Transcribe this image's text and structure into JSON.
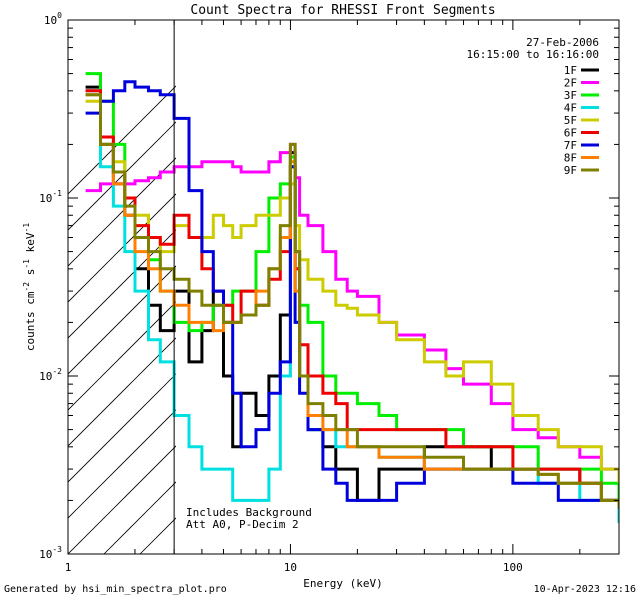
{
  "chart_data": {
    "type": "line",
    "title": "Count Spectra for RHESSI Front Segments",
    "xlabel": "Energy (keV)",
    "ylabel_parts": [
      "counts cm",
      "-2",
      " s",
      "-1",
      " keV",
      "-1"
    ],
    "x_scale": "log",
    "y_scale": "log",
    "xlim": [
      1,
      300
    ],
    "ylim": [
      0.001,
      1
    ],
    "x_ticks": [
      {
        "value": 1,
        "label": "1"
      },
      {
        "value": 10,
        "label": "10"
      },
      {
        "value": 100,
        "label": "100"
      }
    ],
    "y_ticks": [
      {
        "value": 1,
        "mant": "10",
        "exp": "0"
      },
      {
        "value": 0.1,
        "mant": "10",
        "exp": "-1"
      },
      {
        "value": 0.01,
        "mant": "10",
        "exp": "-2"
      },
      {
        "value": 0.001,
        "mant": "10",
        "exp": "-3"
      }
    ],
    "attenuator_region_xmax": 3,
    "legend_date": "27-Feb-2006",
    "legend_time": "16:15:00 to 16:16:00",
    "annotations": [
      "Includes Background",
      "Att A0, P-Decim 2"
    ],
    "series": [
      {
        "name": "1F",
        "color": "#000000",
        "x": [
          1.2,
          1.4,
          1.6,
          1.8,
          2.0,
          2.3,
          2.6,
          3.0,
          3.5,
          4.0,
          4.5,
          5.0,
          5.5,
          6.0,
          7.0,
          8.0,
          9.0,
          10.0,
          10.5,
          11.0,
          12.0,
          14.0,
          16.0,
          18.0,
          20.0,
          25.0,
          30.0,
          40.0,
          50.0,
          60.0,
          80.0,
          100.0,
          130.0,
          160.0,
          200.0,
          250.0,
          300.0
        ],
        "y": [
          0.42,
          0.2,
          0.12,
          0.08,
          0.04,
          0.025,
          0.018,
          0.03,
          0.012,
          0.018,
          0.03,
          0.01,
          0.004,
          0.008,
          0.006,
          0.01,
          0.022,
          0.18,
          0.05,
          0.01,
          0.005,
          0.004,
          0.003,
          0.003,
          0.002,
          0.003,
          0.003,
          0.004,
          0.004,
          0.004,
          0.003,
          0.003,
          0.003,
          0.003,
          0.0025,
          0.002,
          0.0015
        ]
      },
      {
        "name": "2F",
        "color": "#ff00ff",
        "x": [
          1.2,
          1.4,
          1.6,
          1.8,
          2.0,
          2.3,
          2.6,
          3.0,
          3.5,
          4.0,
          4.5,
          5.0,
          5.5,
          6.0,
          7.0,
          8.0,
          9.0,
          10.0,
          10.5,
          11.0,
          12.0,
          14.0,
          16.0,
          18.0,
          20.0,
          25.0,
          30.0,
          40.0,
          50.0,
          60.0,
          80.0,
          100.0,
          130.0,
          160.0,
          200.0,
          250.0,
          300.0
        ],
        "y": [
          0.11,
          0.12,
          0.12,
          0.12,
          0.125,
          0.13,
          0.14,
          0.15,
          0.15,
          0.16,
          0.16,
          0.16,
          0.15,
          0.14,
          0.14,
          0.16,
          0.18,
          0.2,
          0.13,
          0.08,
          0.07,
          0.05,
          0.035,
          0.03,
          0.028,
          0.02,
          0.017,
          0.014,
          0.011,
          0.009,
          0.007,
          0.005,
          0.0045,
          0.004,
          0.0035,
          0.003,
          0.0025
        ]
      },
      {
        "name": "3F",
        "color": "#00ee00",
        "x": [
          1.2,
          1.4,
          1.6,
          1.8,
          2.0,
          2.3,
          2.6,
          3.0,
          3.5,
          4.0,
          4.5,
          5.0,
          5.5,
          6.0,
          7.0,
          8.0,
          9.0,
          10.0,
          10.5,
          11.0,
          12.0,
          14.0,
          16.0,
          18.0,
          20.0,
          25.0,
          30.0,
          40.0,
          50.0,
          60.0,
          80.0,
          100.0,
          130.0,
          160.0,
          200.0,
          250.0,
          300.0
        ],
        "y": [
          0.5,
          0.35,
          0.2,
          0.1,
          0.06,
          0.045,
          0.03,
          0.02,
          0.018,
          0.02,
          0.025,
          0.025,
          0.03,
          0.03,
          0.05,
          0.1,
          0.12,
          0.17,
          0.04,
          0.025,
          0.02,
          0.01,
          0.008,
          0.008,
          0.007,
          0.006,
          0.005,
          0.005,
          0.005,
          0.004,
          0.004,
          0.004,
          0.003,
          0.003,
          0.003,
          0.0025,
          0.002
        ]
      },
      {
        "name": "4F",
        "color": "#00e0e0",
        "x": [
          1.2,
          1.4,
          1.6,
          1.8,
          2.0,
          2.3,
          2.6,
          3.0,
          3.5,
          4.0,
          4.5,
          5.0,
          5.5,
          6.0,
          7.0,
          8.0,
          9.0,
          10.0,
          10.5,
          11.0,
          12.0,
          14.0,
          16.0,
          18.0,
          20.0,
          25.0,
          30.0,
          40.0,
          50.0,
          60.0,
          80.0,
          100.0,
          130.0,
          160.0,
          200.0,
          250.0,
          300.0
        ],
        "y": [
          0.4,
          0.15,
          0.09,
          0.05,
          0.03,
          0.016,
          0.012,
          0.006,
          0.004,
          0.003,
          0.003,
          0.003,
          0.002,
          0.002,
          0.002,
          0.003,
          0.01,
          0.12,
          0.03,
          0.01,
          0.005,
          0.005,
          0.004,
          0.004,
          0.004,
          0.0035,
          0.0035,
          0.003,
          0.003,
          0.003,
          0.003,
          0.003,
          0.0025,
          0.0025,
          0.002,
          0.002,
          0.0015
        ]
      },
      {
        "name": "5F",
        "color": "#cccc00",
        "x": [
          1.2,
          1.4,
          1.6,
          1.8,
          2.0,
          2.3,
          2.6,
          3.0,
          3.5,
          4.0,
          4.5,
          5.0,
          5.5,
          6.0,
          7.0,
          8.0,
          9.0,
          10.0,
          10.5,
          11.0,
          12.0,
          14.0,
          16.0,
          18.0,
          20.0,
          25.0,
          30.0,
          40.0,
          50.0,
          60.0,
          80.0,
          100.0,
          130.0,
          160.0,
          200.0,
          250.0,
          300.0
        ],
        "y": [
          0.35,
          0.22,
          0.16,
          0.1,
          0.08,
          0.06,
          0.05,
          0.07,
          0.06,
          0.06,
          0.08,
          0.07,
          0.06,
          0.07,
          0.08,
          0.08,
          0.1,
          0.12,
          0.07,
          0.045,
          0.035,
          0.03,
          0.025,
          0.024,
          0.022,
          0.02,
          0.016,
          0.012,
          0.01,
          0.012,
          0.009,
          0.006,
          0.005,
          0.004,
          0.004,
          0.003,
          0.0025
        ]
      },
      {
        "name": "6F",
        "color": "#ee0000",
        "x": [
          1.2,
          1.4,
          1.6,
          1.8,
          2.0,
          2.3,
          2.6,
          3.0,
          3.5,
          4.0,
          4.5,
          5.0,
          5.5,
          6.0,
          7.0,
          8.0,
          9.0,
          10.0,
          10.5,
          11.0,
          12.0,
          14.0,
          16.0,
          18.0,
          20.0,
          25.0,
          30.0,
          40.0,
          50.0,
          60.0,
          80.0,
          100.0,
          130.0,
          160.0,
          200.0,
          250.0,
          300.0
        ],
        "y": [
          0.4,
          0.22,
          0.14,
          0.1,
          0.07,
          0.06,
          0.055,
          0.08,
          0.06,
          0.04,
          0.03,
          0.025,
          0.02,
          0.03,
          0.025,
          0.035,
          0.05,
          0.15,
          0.04,
          0.015,
          0.01,
          0.008,
          0.007,
          0.005,
          0.005,
          0.005,
          0.005,
          0.005,
          0.004,
          0.004,
          0.004,
          0.003,
          0.003,
          0.003,
          0.0025,
          0.002,
          0.002
        ]
      },
      {
        "name": "7F",
        "color": "#0000dd",
        "x": [
          1.2,
          1.4,
          1.6,
          1.8,
          2.0,
          2.3,
          2.6,
          3.0,
          3.5,
          4.0,
          4.5,
          5.0,
          5.5,
          6.0,
          7.0,
          8.0,
          9.0,
          10.0,
          10.5,
          11.0,
          12.0,
          14.0,
          16.0,
          18.0,
          20.0,
          25.0,
          30.0,
          40.0,
          50.0,
          60.0,
          80.0,
          100.0,
          130.0,
          160.0,
          200.0,
          250.0,
          300.0
        ],
        "y": [
          0.3,
          0.35,
          0.4,
          0.45,
          0.42,
          0.4,
          0.38,
          0.28,
          0.11,
          0.05,
          0.03,
          0.02,
          0.008,
          0.004,
          0.005,
          0.008,
          0.012,
          0.15,
          0.02,
          0.008,
          0.005,
          0.003,
          0.0025,
          0.002,
          0.002,
          0.002,
          0.0025,
          0.003,
          0.003,
          0.003,
          0.003,
          0.0025,
          0.0025,
          0.002,
          0.002,
          0.002,
          0.0018
        ]
      },
      {
        "name": "8F",
        "color": "#ff8000",
        "x": [
          1.2,
          1.4,
          1.6,
          1.8,
          2.0,
          2.3,
          2.6,
          3.0,
          3.5,
          4.0,
          4.5,
          5.0,
          5.5,
          6.0,
          7.0,
          8.0,
          9.0,
          10.0,
          10.5,
          11.0,
          12.0,
          14.0,
          16.0,
          18.0,
          20.0,
          25.0,
          30.0,
          40.0,
          50.0,
          60.0,
          80.0,
          100.0,
          130.0,
          160.0,
          200.0,
          250.0,
          300.0
        ],
        "y": [
          0.38,
          0.2,
          0.12,
          0.08,
          0.05,
          0.04,
          0.03,
          0.025,
          0.02,
          0.02,
          0.018,
          0.02,
          0.02,
          0.022,
          0.03,
          0.04,
          0.06,
          0.16,
          0.03,
          0.01,
          0.006,
          0.005,
          0.005,
          0.004,
          0.004,
          0.0035,
          0.0035,
          0.003,
          0.003,
          0.003,
          0.003,
          0.003,
          0.0028,
          0.0025,
          0.0025,
          0.002,
          0.002
        ]
      },
      {
        "name": "9F",
        "color": "#808000",
        "x": [
          1.2,
          1.4,
          1.6,
          1.8,
          2.0,
          2.3,
          2.6,
          3.0,
          3.5,
          4.0,
          4.5,
          5.0,
          5.5,
          6.0,
          7.0,
          8.0,
          9.0,
          10.0,
          10.5,
          11.0,
          12.0,
          14.0,
          16.0,
          18.0,
          20.0,
          25.0,
          30.0,
          40.0,
          50.0,
          60.0,
          80.0,
          100.0,
          130.0,
          160.0,
          200.0,
          250.0,
          300.0
        ],
        "y": [
          0.38,
          0.2,
          0.14,
          0.09,
          0.06,
          0.05,
          0.04,
          0.035,
          0.03,
          0.025,
          0.025,
          0.02,
          0.02,
          0.022,
          0.025,
          0.04,
          0.07,
          0.2,
          0.05,
          0.01,
          0.007,
          0.006,
          0.005,
          0.005,
          0.004,
          0.004,
          0.004,
          0.0035,
          0.0035,
          0.003,
          0.003,
          0.003,
          0.0028,
          0.0025,
          0.0025,
          0.002,
          0.0018
        ]
      }
    ]
  },
  "footer": {
    "generated": "Generated by hsi_min_spectra_plot.pro",
    "date": "10-Apr-2023 12:16"
  }
}
